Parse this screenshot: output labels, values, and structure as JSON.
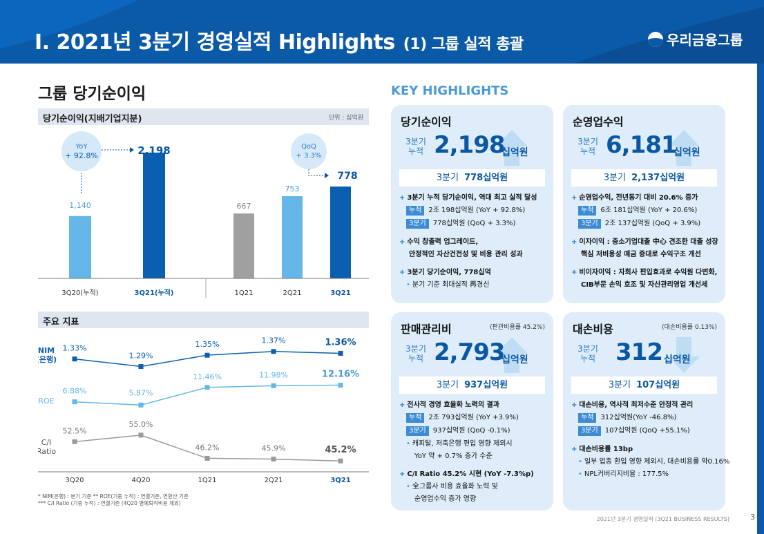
{
  "header": {
    "title": "I. 2021년 3분기 경영실적 Highlights",
    "subtitle": "(1) 그룹 실적 총괄",
    "logo": "우리금융그룹"
  },
  "left": {
    "section_title": "그룹 당기순이익",
    "net_income_header": "당기순이익(지배기업지분)",
    "unit": "단위 : 십억원",
    "yoy_bubble": {
      "line1": "YoY",
      "line2": "+ 92.8%"
    },
    "qoq_bubble": {
      "line1": "QoQ",
      "line2": "+ 3.3%"
    },
    "indicator_header": "주요 지표",
    "footnotes": [
      "* NIM(은행) : 분기 기준   ** ROE(기중 누적) :  연결기준, 연환산 기준",
      "*** C/I Ratio (기중 누적) :  연결기준 (4Q20  명예퇴직비용  제외)"
    ]
  },
  "chart_data": [
    {
      "type": "bar",
      "categories": [
        "3Q20(누적)",
        "3Q21(누적)"
      ],
      "values": [
        1140,
        2198
      ],
      "value_labels": [
        "1,140",
        "2,198"
      ],
      "colors": [
        "#64b7e8",
        "#0a5fb0"
      ]
    },
    {
      "type": "bar",
      "categories": [
        "1Q21",
        "2Q21",
        "3Q21"
      ],
      "values": [
        667,
        753,
        778
      ],
      "value_labels": [
        "667",
        "753",
        "778"
      ],
      "colors": [
        "#a0a0a0",
        "#64b7e8",
        "#0a5fb0"
      ]
    },
    {
      "type": "line",
      "categories": [
        "3Q20",
        "4Q20",
        "1Q21",
        "2Q21",
        "3Q21"
      ],
      "series": [
        {
          "name": "NIM\n(은행)",
          "values": [
            1.33,
            1.29,
            1.35,
            1.37,
            1.36
          ],
          "labels": [
            "1.33%",
            "1.29%",
            "1.35%",
            "1.37%",
            "1.36%"
          ],
          "color": "#0a5fb0"
        },
        {
          "name": "ROE",
          "values": [
            6.88,
            5.87,
            11.46,
            11.98,
            12.16
          ],
          "labels": [
            "6.88%",
            "5.87%",
            "11.46%",
            "11.98%",
            "12.16%"
          ],
          "color": "#64b7e8"
        },
        {
          "name": "C/I\nRatio",
          "values": [
            52.5,
            55.0,
            46.2,
            45.9,
            45.2
          ],
          "labels": [
            "52.5%",
            "55.0%",
            "46.2%",
            "45.9%",
            "45.2%"
          ],
          "color": "#999999"
        }
      ]
    }
  ],
  "key_highlights_title": "KEY HIGHLIGHTS",
  "cards": [
    {
      "title": "당기순이익",
      "note": "",
      "lbl1": "3분기",
      "lbl2": "누적",
      "value": "2,198",
      "unit": "십억원",
      "arrow": "up",
      "quarter_label": "3분기",
      "quarter_value": "778십억원",
      "lines": [
        {
          "kind": "plus",
          "text": "3분기 누적 당기순이익, 역대 최고 실적 달성",
          "bold": true
        },
        {
          "kind": "tag",
          "tag": "누적",
          "text": "2조 198십억원 (YoY + 92.8%)"
        },
        {
          "kind": "tag",
          "tag": "3분기",
          "text": "778십억원 (QoQ + 3.3%)"
        },
        {
          "kind": "plus",
          "text": "수익 창출력 업그레이드,",
          "bold": true
        },
        {
          "kind": "cont",
          "text": "안정적인 자산건전성 및 비용 관리 성과",
          "bold": true
        },
        {
          "kind": "plus",
          "text": "3분기 당기순이익, 778십억",
          "bold": true
        },
        {
          "kind": "dot",
          "text": "분기 기준 최대실적 再경신"
        }
      ]
    },
    {
      "title": "순영업수익",
      "note": "",
      "lbl1": "3분기",
      "lbl2": "누적",
      "value": "6,181",
      "unit": "십억원",
      "arrow": "up",
      "quarter_label": "3분기",
      "quarter_value": "2,137십억원",
      "lines": [
        {
          "kind": "plus",
          "text": "순영업수익, 전년동기 대비 20.6% 증가",
          "bold": true
        },
        {
          "kind": "tag",
          "tag": "누적",
          "text": "6조 181십억원 (YoY + 20.6%)"
        },
        {
          "kind": "tag",
          "tag": "3분기",
          "text": "2조 137십억원 (QoQ + 3.9%)"
        },
        {
          "kind": "plus",
          "text": "이자이익 : 중소기업대출 中心 견조한 대출 성장",
          "bold": true
        },
        {
          "kind": "cont",
          "text": "핵심 저비용성 예금 증대로 수익구조 개선",
          "bold": true
        },
        {
          "kind": "plus",
          "text": "비이자이익 : 자회사 편입효과로 수익원 다변화,",
          "bold": true
        },
        {
          "kind": "cont",
          "text": "CIB부문 손익 호조 및 자산관리영업 개선세",
          "bold": true
        }
      ]
    },
    {
      "title": "판매관리비",
      "note": "(판관비용률 45.2%)",
      "lbl1": "3분기",
      "lbl2": "누적",
      "value": "2,793",
      "unit": "십억원",
      "arrow": "up",
      "quarter_label": "3분기",
      "quarter_value": "937십억원",
      "lines": [
        {
          "kind": "plus",
          "text": "전사적 경영 효율화 노력의 결과",
          "bold": true
        },
        {
          "kind": "tag",
          "tag": "누적",
          "text": "2조 793십억원 (YoY +3.9%)"
        },
        {
          "kind": "tag",
          "tag": "3분기",
          "text": "937십억원 (QoQ -0.1%)"
        },
        {
          "kind": "dot",
          "text": "캐피탈, 저축은행 편입 영향 제외시"
        },
        {
          "kind": "cont",
          "text": "YoY  약 + 0.7% 증가 수준"
        },
        {
          "kind": "plus",
          "text": "C/I Ratio 45.2% 시현 (YoY -7.3%p)",
          "bold": true
        },
        {
          "kind": "dot",
          "text": "全그룹사 비용 효율화 노력 및"
        },
        {
          "kind": "cont",
          "text": "순영업수익  증가 영향"
        }
      ]
    },
    {
      "title": "대손비용",
      "note": "(대손비용률 0.13%)",
      "lbl1": "3분기",
      "lbl2": "누적",
      "value": "312",
      "unit": "십억원",
      "arrow": "down",
      "quarter_label": "3분기",
      "quarter_value": "107십억원",
      "lines": [
        {
          "kind": "plus",
          "text": "대손비용, 역사적 최저수준 안정적 관리",
          "bold": true
        },
        {
          "kind": "tag",
          "tag": "누적",
          "text": "312십억원(YoY -46.8%)"
        },
        {
          "kind": "tag",
          "tag": "3분기",
          "text": "107십억원 (QoQ +55.1%)"
        },
        {
          "kind": "plus",
          "text": "대손비용률 13bp",
          "bold": true
        },
        {
          "kind": "dot",
          "text": "일부 업종 환입 영향 제외시, 대손비용률 약0.16%"
        },
        {
          "kind": "dot",
          "text": "NPL커버리지비율 : 177.5%"
        }
      ]
    }
  ],
  "footer": "2021년 3분기 경영실적 (3Q21 BUSINESS RESULTS)",
  "page_number": "3"
}
